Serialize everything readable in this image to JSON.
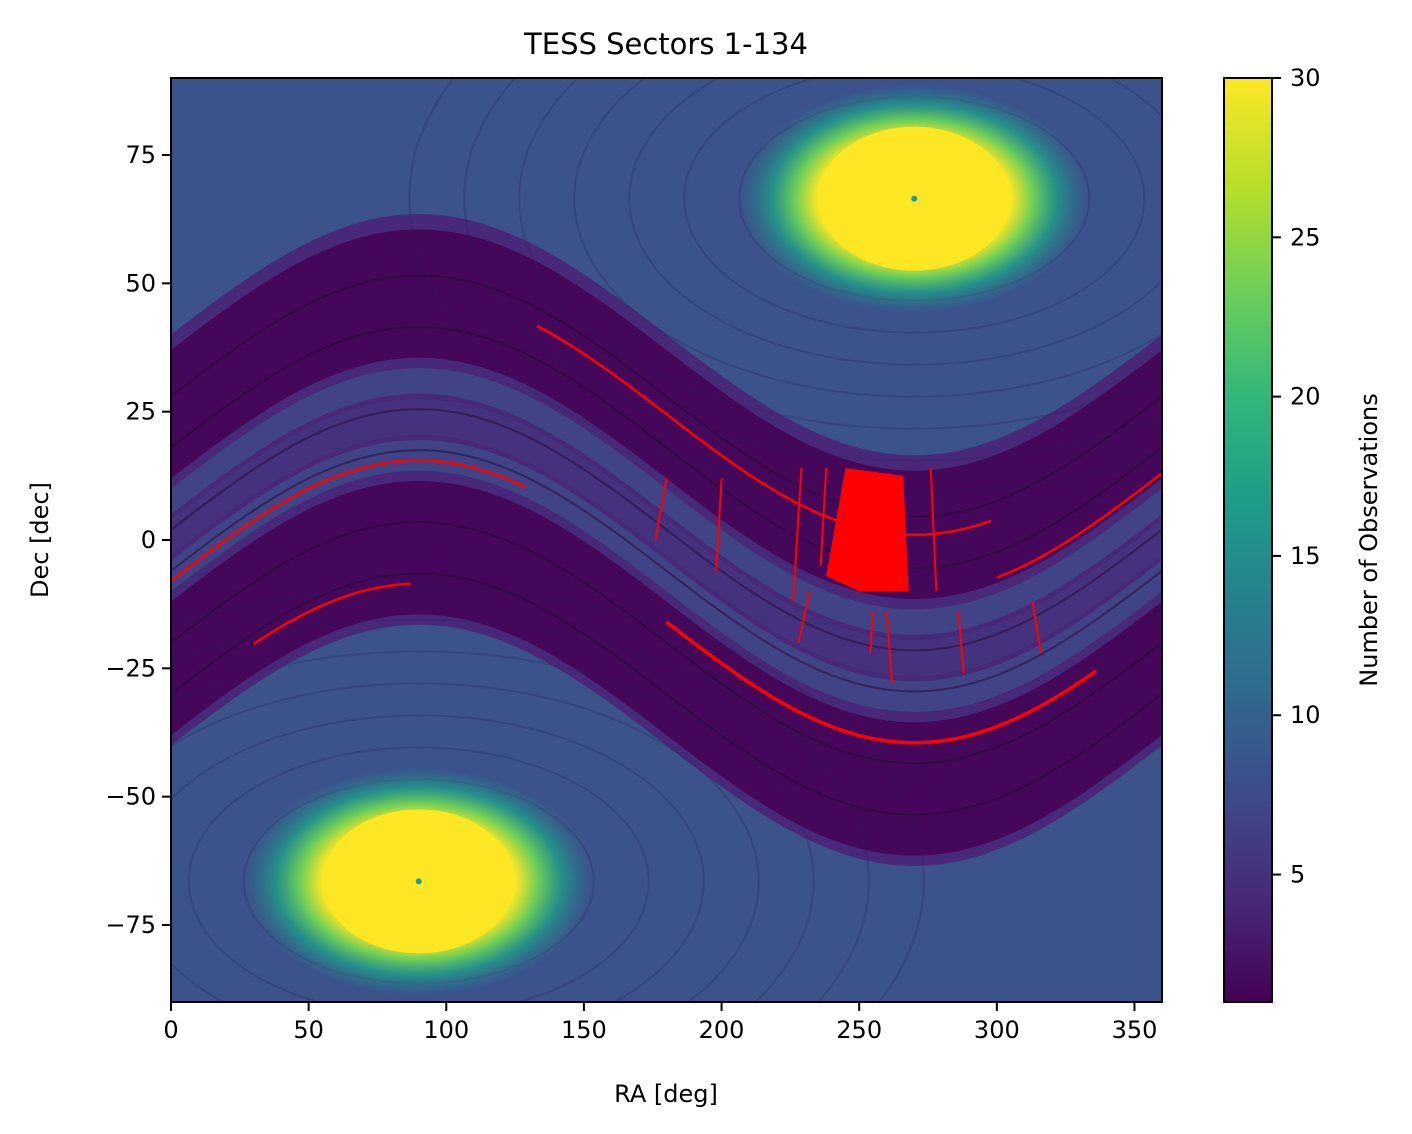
{
  "chart_data": {
    "type": "heatmap",
    "title": "TESS Sectors 1-134",
    "xlabel": "RA [deg]",
    "ylabel": "Dec [dec]",
    "xlim": [
      0,
      360
    ],
    "ylim": [
      -90,
      90
    ],
    "xticks": [
      0,
      50,
      100,
      150,
      200,
      250,
      300,
      350
    ],
    "yticks": [
      -75,
      -50,
      -25,
      0,
      25,
      50,
      75
    ],
    "xtick_labels": [
      "0",
      "50",
      "100",
      "150",
      "200",
      "250",
      "300",
      "350"
    ],
    "ytick_labels": [
      "−75",
      "−50",
      "−25",
      "0",
      "25",
      "50",
      "75"
    ],
    "colorbar": {
      "label": "Number of Observations",
      "colormap": "viridis",
      "range": [
        1,
        30
      ],
      "ticks": [
        5,
        10,
        15,
        20,
        25,
        30
      ],
      "tick_labels": [
        "5",
        "10",
        "15",
        "20",
        "25",
        "30"
      ]
    },
    "features": {
      "continuous_viewing_zones": [
        {
          "ra": 270,
          "dec": 66.5,
          "radius_deg": 12,
          "value": 30
        },
        {
          "ra": 90,
          "dec": -66.5,
          "radius_deg": 12,
          "value": 30
        }
      ],
      "ecliptic_band": {
        "low_coverage_value": 2,
        "amplitude_deg": 23.5
      },
      "unobserved_region": {
        "color": "#ff0000",
        "ra_range": [
          238,
          268
        ],
        "dec_range": [
          -10,
          14
        ]
      }
    },
    "colors": {
      "unobserved": "#ff0000",
      "viridis_low": "#440154",
      "viridis_mid": "#21918c",
      "viridis_high": "#fde725"
    }
  }
}
